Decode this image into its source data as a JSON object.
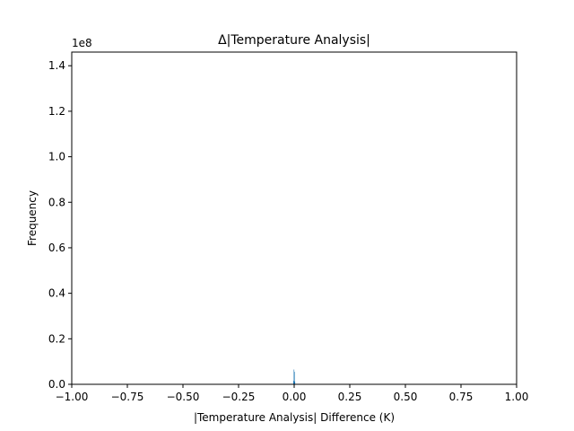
{
  "chart_data": {
    "type": "histogram",
    "title": "Δ|Temperature Analysis|",
    "xlabel": "|Temperature Analysis| Difference (K)",
    "ylabel": "Frequency",
    "xlim": [
      -1.0,
      1.0
    ],
    "ylim": [
      0,
      146000000.0
    ],
    "y_offset_label": "1e8",
    "x_ticks": [
      {
        "value": -1.0,
        "label": "−1.00"
      },
      {
        "value": -0.75,
        "label": "−0.75"
      },
      {
        "value": -0.5,
        "label": "−0.50"
      },
      {
        "value": -0.25,
        "label": "−0.25"
      },
      {
        "value": 0.0,
        "label": "0.00"
      },
      {
        "value": 0.25,
        "label": "0.25"
      },
      {
        "value": 0.5,
        "label": "0.50"
      },
      {
        "value": 0.75,
        "label": "0.75"
      },
      {
        "value": 1.0,
        "label": "1.00"
      }
    ],
    "y_ticks": [
      {
        "value": 0.0,
        "label": "0.0"
      },
      {
        "value": 20000000.0,
        "label": "0.2"
      },
      {
        "value": 40000000.0,
        "label": "0.4"
      },
      {
        "value": 60000000.0,
        "label": "0.6"
      },
      {
        "value": 80000000.0,
        "label": "0.8"
      },
      {
        "value": 100000000.0,
        "label": "1.0"
      },
      {
        "value": 120000000.0,
        "label": "1.2"
      },
      {
        "value": 140000000.0,
        "label": "1.4"
      }
    ],
    "bars": [
      {
        "x0": -0.004,
        "x1": -0.002,
        "value": 1500000.0
      },
      {
        "x0": -0.002,
        "x1": 0.0,
        "value": 6500000.0
      },
      {
        "x0": 0.0,
        "x1": 0.002,
        "value": 5500000.0
      },
      {
        "x0": 0.002,
        "x1": 0.004,
        "value": 1200000.0
      }
    ],
    "bar_color": "#1f77b4",
    "grid": false,
    "legend": "none"
  }
}
